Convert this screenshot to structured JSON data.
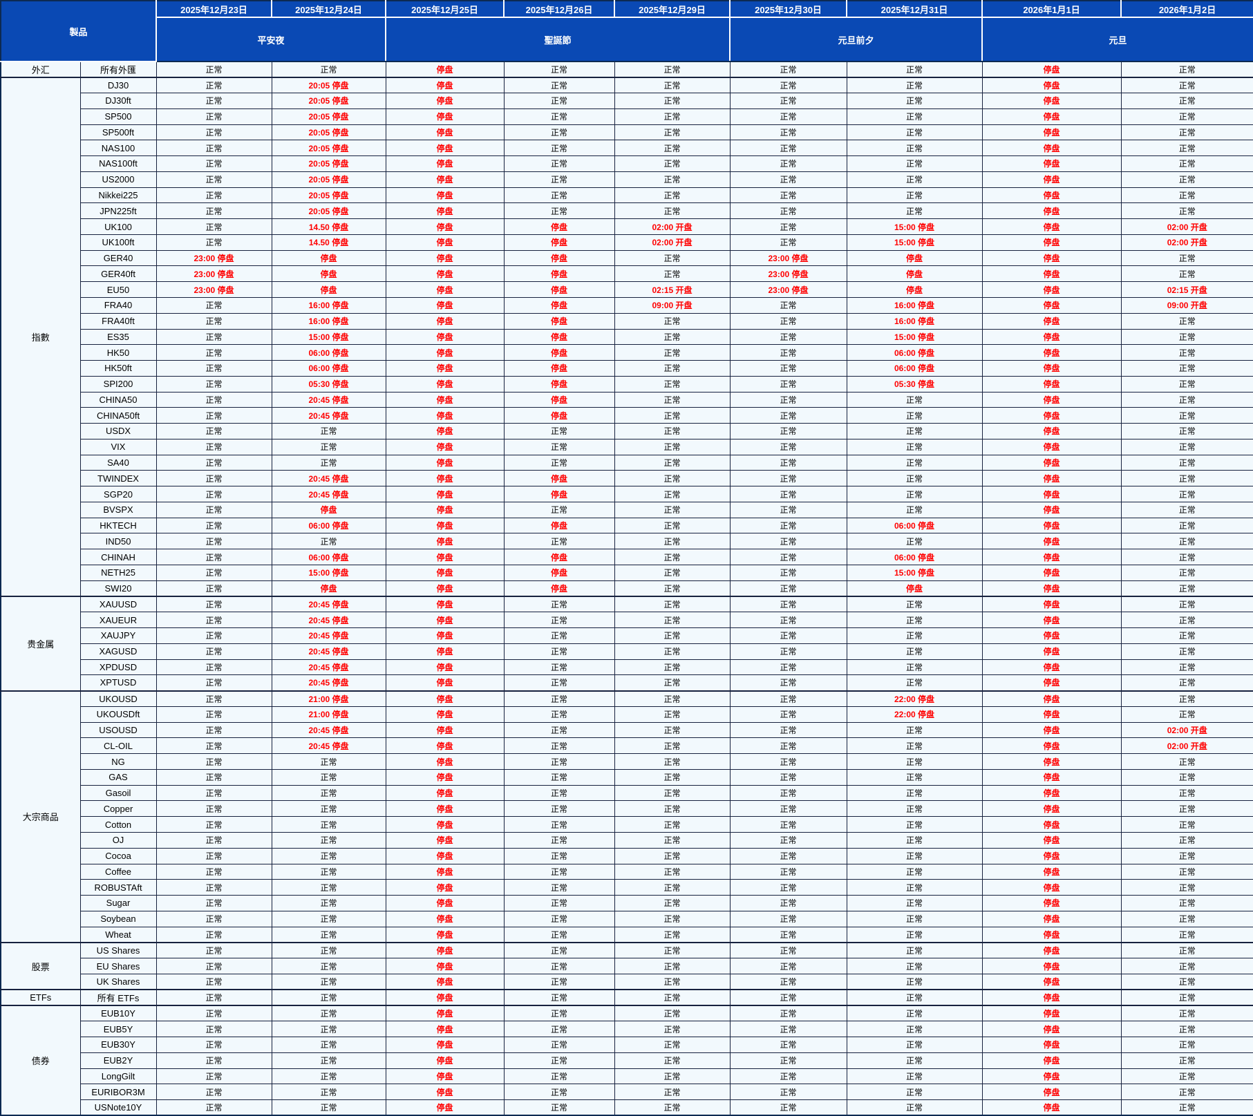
{
  "table": {
    "product_header": "製品",
    "header_bg": "#0a49b4",
    "body_bg": "#f2f9fd",
    "status_normal_color": "#000000",
    "status_closed_color": "#ff0000",
    "normal_label": "正常",
    "date_columns": [
      "2025年12月23日",
      "2025年12月24日",
      "2025年12月25日",
      "2025年12月26日",
      "2025年12月29日",
      "2025年12月30日",
      "2025年12月31日",
      "2026年1月1日",
      "2026年1月2日"
    ],
    "holiday_groups": [
      {
        "label": "平安夜",
        "span": 2
      },
      {
        "label": "聖誕節",
        "span": 3
      },
      {
        "label": "元旦前夕",
        "span": 2
      },
      {
        "label": "元旦",
        "span": 2
      }
    ],
    "categories": [
      {
        "name": "外汇",
        "products": [
          {
            "name": "所有外匯",
            "values": [
              "正常",
              "正常",
              "停盘",
              "正常",
              "正常",
              "正常",
              "正常",
              "停盘",
              "正常"
            ]
          }
        ]
      },
      {
        "name": "指數",
        "products": [
          {
            "name": "DJ30",
            "values": [
              "正常",
              "20:05 停盘",
              "停盘",
              "正常",
              "正常",
              "正常",
              "正常",
              "停盘",
              "正常"
            ]
          },
          {
            "name": "DJ30ft",
            "values": [
              "正常",
              "20:05 停盘",
              "停盘",
              "正常",
              "正常",
              "正常",
              "正常",
              "停盘",
              "正常"
            ]
          },
          {
            "name": "SP500",
            "values": [
              "正常",
              "20:05 停盘",
              "停盘",
              "正常",
              "正常",
              "正常",
              "正常",
              "停盘",
              "正常"
            ]
          },
          {
            "name": "SP500ft",
            "values": [
              "正常",
              "20:05 停盘",
              "停盘",
              "正常",
              "正常",
              "正常",
              "正常",
              "停盘",
              "正常"
            ]
          },
          {
            "name": "NAS100",
            "values": [
              "正常",
              "20:05 停盘",
              "停盘",
              "正常",
              "正常",
              "正常",
              "正常",
              "停盘",
              "正常"
            ]
          },
          {
            "name": "NAS100ft",
            "values": [
              "正常",
              "20:05 停盘",
              "停盘",
              "正常",
              "正常",
              "正常",
              "正常",
              "停盘",
              "正常"
            ]
          },
          {
            "name": "US2000",
            "values": [
              "正常",
              "20:05 停盘",
              "停盘",
              "正常",
              "正常",
              "正常",
              "正常",
              "停盘",
              "正常"
            ]
          },
          {
            "name": "Nikkei225",
            "values": [
              "正常",
              "20:05 停盘",
              "停盘",
              "正常",
              "正常",
              "正常",
              "正常",
              "停盘",
              "正常"
            ]
          },
          {
            "name": "JPN225ft",
            "values": [
              "正常",
              "20:05 停盘",
              "停盘",
              "正常",
              "正常",
              "正常",
              "正常",
              "停盘",
              "正常"
            ]
          },
          {
            "name": "UK100",
            "values": [
              "正常",
              "14.50 停盘",
              "停盘",
              "停盘",
              "02:00 开盘",
              "正常",
              "15:00 停盘",
              "停盘",
              "02:00 开盘"
            ]
          },
          {
            "name": "UK100ft",
            "values": [
              "正常",
              "14.50 停盘",
              "停盘",
              "停盘",
              "02:00 开盘",
              "正常",
              "15:00 停盘",
              "停盘",
              "02:00 开盘"
            ]
          },
          {
            "name": "GER40",
            "values": [
              "23:00 停盘",
              "停盘",
              "停盘",
              "停盘",
              "正常",
              "23:00 停盘",
              "停盘",
              "停盘",
              "正常"
            ]
          },
          {
            "name": "GER40ft",
            "values": [
              "23:00 停盘",
              "停盘",
              "停盘",
              "停盘",
              "正常",
              "23:00 停盘",
              "停盘",
              "停盘",
              "正常"
            ]
          },
          {
            "name": "EU50",
            "values": [
              "23:00 停盘",
              "停盘",
              "停盘",
              "停盘",
              "02:15 开盘",
              "23:00 停盘",
              "停盘",
              "停盘",
              "02:15 开盘"
            ]
          },
          {
            "name": "FRA40",
            "values": [
              "正常",
              "16:00 停盘",
              "停盘",
              "停盘",
              "09:00 开盘",
              "正常",
              "16:00 停盘",
              "停盘",
              "09:00 开盘"
            ]
          },
          {
            "name": "FRA40ft",
            "values": [
              "正常",
              "16:00 停盘",
              "停盘",
              "停盘",
              "正常",
              "正常",
              "16:00 停盘",
              "停盘",
              "正常"
            ]
          },
          {
            "name": "ES35",
            "values": [
              "正常",
              "15:00 停盘",
              "停盘",
              "停盘",
              "正常",
              "正常",
              "15:00 停盘",
              "停盘",
              "正常"
            ]
          },
          {
            "name": "HK50",
            "values": [
              "正常",
              "06:00 停盘",
              "停盘",
              "停盘",
              "正常",
              "正常",
              "06:00 停盘",
              "停盘",
              "正常"
            ]
          },
          {
            "name": "HK50ft",
            "values": [
              "正常",
              "06:00 停盘",
              "停盘",
              "停盘",
              "正常",
              "正常",
              "06:00 停盘",
              "停盘",
              "正常"
            ]
          },
          {
            "name": "SPI200",
            "values": [
              "正常",
              "05:30 停盘",
              "停盘",
              "停盘",
              "正常",
              "正常",
              "05:30 停盘",
              "停盘",
              "正常"
            ]
          },
          {
            "name": "CHINA50",
            "values": [
              "正常",
              "20:45 停盘",
              "停盘",
              "停盘",
              "正常",
              "正常",
              "正常",
              "停盘",
              "正常"
            ]
          },
          {
            "name": "CHINA50ft",
            "values": [
              "正常",
              "20:45 停盘",
              "停盘",
              "停盘",
              "正常",
              "正常",
              "正常",
              "停盘",
              "正常"
            ]
          },
          {
            "name": "USDX",
            "values": [
              "正常",
              "正常",
              "停盘",
              "正常",
              "正常",
              "正常",
              "正常",
              "停盘",
              "正常"
            ]
          },
          {
            "name": "VIX",
            "values": [
              "正常",
              "正常",
              "停盘",
              "正常",
              "正常",
              "正常",
              "正常",
              "停盘",
              "正常"
            ]
          },
          {
            "name": "SA40",
            "values": [
              "正常",
              "正常",
              "停盘",
              "正常",
              "正常",
              "正常",
              "正常",
              "停盘",
              "正常"
            ]
          },
          {
            "name": "TWINDEX",
            "values": [
              "正常",
              "20:45 停盘",
              "停盘",
              "停盘",
              "正常",
              "正常",
              "正常",
              "停盘",
              "正常"
            ]
          },
          {
            "name": "SGP20",
            "values": [
              "正常",
              "20:45 停盘",
              "停盘",
              "停盘",
              "正常",
              "正常",
              "正常",
              "停盘",
              "正常"
            ]
          },
          {
            "name": "BVSPX",
            "values": [
              "正常",
              "停盘",
              "停盘",
              "正常",
              "正常",
              "正常",
              "正常",
              "停盘",
              "正常"
            ]
          },
          {
            "name": "HKTECH",
            "values": [
              "正常",
              "06:00 停盘",
              "停盘",
              "停盘",
              "正常",
              "正常",
              "06:00 停盘",
              "停盘",
              "正常"
            ]
          },
          {
            "name": "IND50",
            "values": [
              "正常",
              "正常",
              "停盘",
              "正常",
              "正常",
              "正常",
              "正常",
              "停盘",
              "正常"
            ]
          },
          {
            "name": "CHINAH",
            "values": [
              "正常",
              "06:00 停盘",
              "停盘",
              "停盘",
              "正常",
              "正常",
              "06:00 停盘",
              "停盘",
              "正常"
            ]
          },
          {
            "name": "NETH25",
            "values": [
              "正常",
              "15:00 停盘",
              "停盘",
              "停盘",
              "正常",
              "正常",
              "15:00 停盘",
              "停盘",
              "正常"
            ]
          },
          {
            "name": "SWI20",
            "values": [
              "正常",
              "停盘",
              "停盘",
              "停盘",
              "正常",
              "正常",
              "停盘",
              "停盘",
              "正常"
            ]
          }
        ]
      },
      {
        "name": "贵金属",
        "products": [
          {
            "name": "XAUUSD",
            "values": [
              "正常",
              "20:45 停盘",
              "停盘",
              "正常",
              "正常",
              "正常",
              "正常",
              "停盘",
              "正常"
            ]
          },
          {
            "name": "XAUEUR",
            "values": [
              "正常",
              "20:45 停盘",
              "停盘",
              "正常",
              "正常",
              "正常",
              "正常",
              "停盘",
              "正常"
            ]
          },
          {
            "name": "XAUJPY",
            "values": [
              "正常",
              "20:45 停盘",
              "停盘",
              "正常",
              "正常",
              "正常",
              "正常",
              "停盘",
              "正常"
            ]
          },
          {
            "name": "XAGUSD",
            "values": [
              "正常",
              "20:45 停盘",
              "停盘",
              "正常",
              "正常",
              "正常",
              "正常",
              "停盘",
              "正常"
            ]
          },
          {
            "name": "XPDUSD",
            "values": [
              "正常",
              "20:45 停盘",
              "停盘",
              "正常",
              "正常",
              "正常",
              "正常",
              "停盘",
              "正常"
            ]
          },
          {
            "name": "XPTUSD",
            "values": [
              "正常",
              "20:45 停盘",
              "停盘",
              "正常",
              "正常",
              "正常",
              "正常",
              "停盘",
              "正常"
            ]
          }
        ]
      },
      {
        "name": "大宗商品",
        "products": [
          {
            "name": "UKOUSD",
            "values": [
              "正常",
              "21:00 停盘",
              "停盘",
              "正常",
              "正常",
              "正常",
              "22:00 停盘",
              "停盘",
              "正常"
            ]
          },
          {
            "name": "UKOUSDft",
            "values": [
              "正常",
              "21:00 停盘",
              "停盘",
              "正常",
              "正常",
              "正常",
              "22:00 停盘",
              "停盘",
              "正常"
            ]
          },
          {
            "name": "USOUSD",
            "values": [
              "正常",
              "20:45 停盘",
              "停盘",
              "正常",
              "正常",
              "正常",
              "正常",
              "停盘",
              "02:00 开盘"
            ]
          },
          {
            "name": "CL-OIL",
            "values": [
              "正常",
              "20:45 停盘",
              "停盘",
              "正常",
              "正常",
              "正常",
              "正常",
              "停盘",
              "02:00 开盘"
            ]
          },
          {
            "name": "NG",
            "values": [
              "正常",
              "正常",
              "停盘",
              "正常",
              "正常",
              "正常",
              "正常",
              "停盘",
              "正常"
            ]
          },
          {
            "name": "GAS",
            "values": [
              "正常",
              "正常",
              "停盘",
              "正常",
              "正常",
              "正常",
              "正常",
              "停盘",
              "正常"
            ]
          },
          {
            "name": "Gasoil",
            "values": [
              "正常",
              "正常",
              "停盘",
              "正常",
              "正常",
              "正常",
              "正常",
              "停盘",
              "正常"
            ]
          },
          {
            "name": "Copper",
            "values": [
              "正常",
              "正常",
              "停盘",
              "正常",
              "正常",
              "正常",
              "正常",
              "停盘",
              "正常"
            ]
          },
          {
            "name": "Cotton",
            "values": [
              "正常",
              "正常",
              "停盘",
              "正常",
              "正常",
              "正常",
              "正常",
              "停盘",
              "正常"
            ]
          },
          {
            "name": "OJ",
            "values": [
              "正常",
              "正常",
              "停盘",
              "正常",
              "正常",
              "正常",
              "正常",
              "停盘",
              "正常"
            ]
          },
          {
            "name": "Cocoa",
            "values": [
              "正常",
              "正常",
              "停盘",
              "正常",
              "正常",
              "正常",
              "正常",
              "停盘",
              "正常"
            ]
          },
          {
            "name": "Coffee",
            "values": [
              "正常",
              "正常",
              "停盘",
              "正常",
              "正常",
              "正常",
              "正常",
              "停盘",
              "正常"
            ]
          },
          {
            "name": "ROBUSTAft",
            "values": [
              "正常",
              "正常",
              "停盘",
              "正常",
              "正常",
              "正常",
              "正常",
              "停盘",
              "正常"
            ]
          },
          {
            "name": "Sugar",
            "values": [
              "正常",
              "正常",
              "停盘",
              "正常",
              "正常",
              "正常",
              "正常",
              "停盘",
              "正常"
            ]
          },
          {
            "name": "Soybean",
            "values": [
              "正常",
              "正常",
              "停盘",
              "正常",
              "正常",
              "正常",
              "正常",
              "停盘",
              "正常"
            ]
          },
          {
            "name": "Wheat",
            "values": [
              "正常",
              "正常",
              "停盘",
              "正常",
              "正常",
              "正常",
              "正常",
              "停盘",
              "正常"
            ]
          }
        ]
      },
      {
        "name": "股票",
        "products": [
          {
            "name": "US Shares",
            "values": [
              "正常",
              "正常",
              "停盘",
              "正常",
              "正常",
              "正常",
              "正常",
              "停盘",
              "正常"
            ]
          },
          {
            "name": "EU Shares",
            "values": [
              "正常",
              "正常",
              "停盘",
              "正常",
              "正常",
              "正常",
              "正常",
              "停盘",
              "正常"
            ]
          },
          {
            "name": "UK Shares",
            "values": [
              "正常",
              "正常",
              "停盘",
              "正常",
              "正常",
              "正常",
              "正常",
              "停盘",
              "正常"
            ]
          }
        ]
      },
      {
        "name": "ETFs",
        "products": [
          {
            "name": "所有 ETFs",
            "values": [
              "正常",
              "正常",
              "停盘",
              "正常",
              "正常",
              "正常",
              "正常",
              "停盘",
              "正常"
            ]
          }
        ]
      },
      {
        "name": "债券",
        "products": [
          {
            "name": "EUB10Y",
            "values": [
              "正常",
              "正常",
              "停盘",
              "正常",
              "正常",
              "正常",
              "正常",
              "停盘",
              "正常"
            ]
          },
          {
            "name": "EUB5Y",
            "values": [
              "正常",
              "正常",
              "停盘",
              "正常",
              "正常",
              "正常",
              "正常",
              "停盘",
              "正常"
            ]
          },
          {
            "name": "EUB30Y",
            "values": [
              "正常",
              "正常",
              "停盘",
              "正常",
              "正常",
              "正常",
              "正常",
              "停盘",
              "正常"
            ]
          },
          {
            "name": "EUB2Y",
            "values": [
              "正常",
              "正常",
              "停盘",
              "正常",
              "正常",
              "正常",
              "正常",
              "停盘",
              "正常"
            ]
          },
          {
            "name": "LongGilt",
            "values": [
              "正常",
              "正常",
              "停盘",
              "正常",
              "正常",
              "正常",
              "正常",
              "停盘",
              "正常"
            ]
          },
          {
            "name": "EURIBOR3M",
            "values": [
              "正常",
              "正常",
              "停盘",
              "正常",
              "正常",
              "正常",
              "正常",
              "停盘",
              "正常"
            ]
          },
          {
            "name": "USNote10Y",
            "values": [
              "正常",
              "正常",
              "停盘",
              "正常",
              "正常",
              "正常",
              "正常",
              "停盘",
              "正常"
            ]
          }
        ]
      }
    ]
  }
}
